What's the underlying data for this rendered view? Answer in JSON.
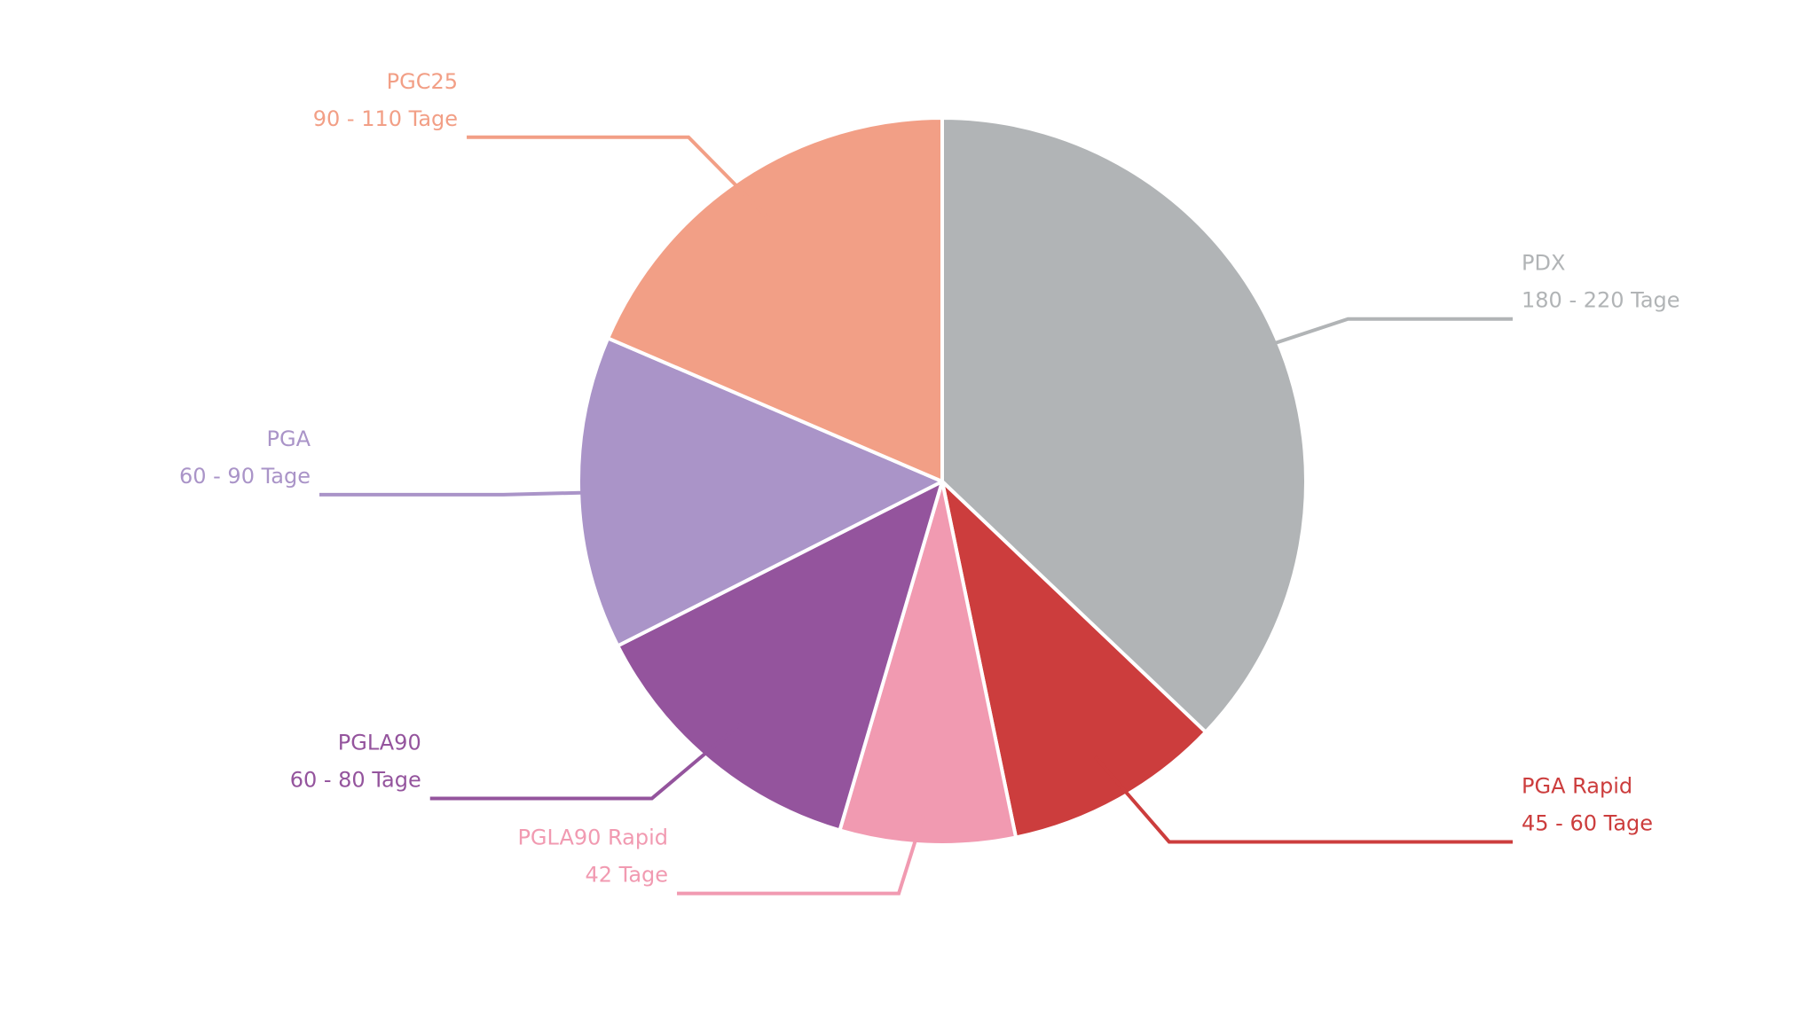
{
  "chart_data": {
    "type": "pie",
    "title": "",
    "start_angle_deg": 0,
    "direction": "clockwise",
    "slices": [
      {
        "label": "PDX",
        "duration": "180 - 220 Tage",
        "value": 200,
        "color": "#b1b4b6",
        "label_side": "right"
      },
      {
        "label": "PGA Rapid",
        "duration": "45 - 60 Tage",
        "value": 52,
        "color": "#cc3d3d",
        "label_side": "right"
      },
      {
        "label": "PGLA90 Rapid",
        "duration": "42 Tage",
        "value": 42,
        "color": "#f19ab1",
        "label_side": "left"
      },
      {
        "label": "PGLA90",
        "duration": "60 - 80 Tage",
        "value": 70,
        "color": "#94549d",
        "label_side": "left"
      },
      {
        "label": "PGA",
        "duration": "60 - 90 Tage",
        "value": 75,
        "color": "#aa94c8",
        "label_side": "left"
      },
      {
        "label": "PGC25",
        "duration": "90 - 110 Tage",
        "value": 100,
        "color": "#f29f86",
        "label_side": "left"
      }
    ]
  }
}
